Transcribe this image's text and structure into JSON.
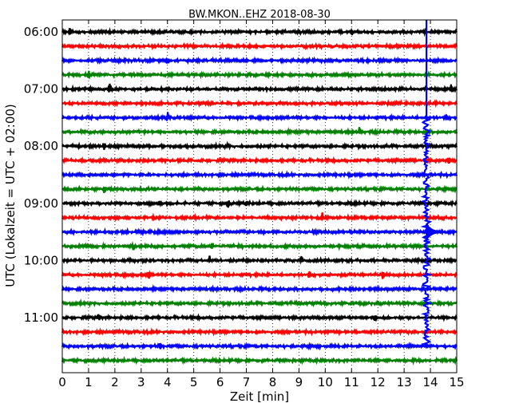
{
  "chart_data": {
    "type": "line",
    "title": "BW.MKON..EHZ 2018-08-30",
    "xlabel": "Zeit  [min]",
    "ylabel": "UTC (Lokalzeit = UTC + 02:00)",
    "xlim": [
      0,
      15
    ],
    "x_ticks": [
      "0",
      "1",
      "2",
      "3",
      "4",
      "5",
      "6",
      "7",
      "8",
      "9",
      "10",
      "11",
      "12",
      "13",
      "14",
      "15"
    ],
    "y_tick_labels": [
      "06:00",
      "07:00",
      "08:00",
      "09:00",
      "10:00",
      "11:00"
    ],
    "grid": "vertical-dotted",
    "trace_colors": [
      "#000000",
      "#ff0000",
      "#0000ff",
      "#008000"
    ],
    "traces_per_hour": 4,
    "trace_count": 24,
    "event_minute": 13.85,
    "event_start_time": "07:30",
    "event_end_time": "11:30",
    "spikes": [
      {
        "row": 0,
        "minute": 0.3
      },
      {
        "row": 0,
        "minute": 11.0
      },
      {
        "row": 2,
        "minute": 4.0
      },
      {
        "row": 3,
        "minute": 1.0
      },
      {
        "row": 4,
        "minute": 1.8
      },
      {
        "row": 4,
        "minute": 14.8
      },
      {
        "row": 6,
        "minute": 4.0
      },
      {
        "row": 6,
        "minute": 14.6
      },
      {
        "row": 7,
        "minute": 11.3
      },
      {
        "row": 8,
        "minute": 1.6
      },
      {
        "row": 8,
        "minute": 6.3
      },
      {
        "row": 9,
        "minute": 14.7
      },
      {
        "row": 11,
        "minute": 1.6
      },
      {
        "row": 12,
        "minute": 3.7
      },
      {
        "row": 12,
        "minute": 6.3
      },
      {
        "row": 12,
        "minute": 7.0
      },
      {
        "row": 12,
        "minute": 11.2
      },
      {
        "row": 13,
        "minute": 9.9
      },
      {
        "row": 14,
        "minute": 3.9
      },
      {
        "row": 15,
        "minute": 2.7
      },
      {
        "row": 15,
        "minute": 5.7
      },
      {
        "row": 16,
        "minute": 5.6
      },
      {
        "row": 16,
        "minute": 9.1
      },
      {
        "row": 17,
        "minute": 1.8
      },
      {
        "row": 17,
        "minute": 3.3
      },
      {
        "row": 17,
        "minute": 9.4
      },
      {
        "row": 17,
        "minute": 12.2
      },
      {
        "row": 20,
        "minute": 1.4
      },
      {
        "row": 20,
        "minute": 11.9
      },
      {
        "row": 22,
        "minute": 3.7
      }
    ]
  }
}
